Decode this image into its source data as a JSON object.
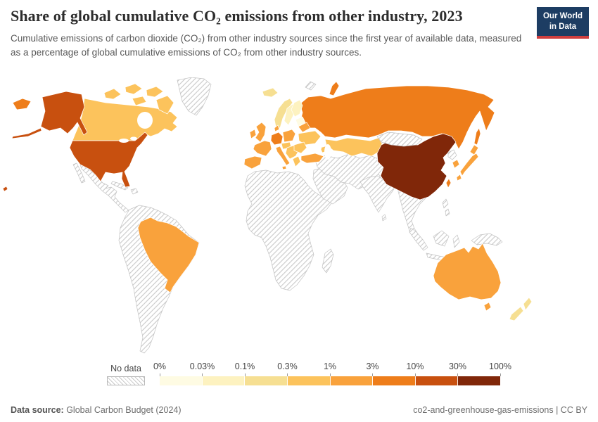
{
  "header": {
    "title": "Share of global cumulative CO₂ emissions from other industry, 2023",
    "subtitle": "Cumulative emissions of carbon dioxide (CO₂) from other industry sources since the first year of available data, measured as a percentage of global cumulative emissions of CO₂ from other industry sources.",
    "logo": {
      "line1": "Our World",
      "line2": "in Data",
      "bg_color": "#1d3d63",
      "accent_color": "#cf3e3e"
    }
  },
  "chart_data": {
    "type": "choropleth_map",
    "title": "Share of global cumulative CO₂ emissions from other industry, 2023",
    "unit": "% of global cumulative CO₂ emissions",
    "year": 2023,
    "projection": "world",
    "legend": {
      "no_data_label": "No data",
      "tick_labels": [
        "0%",
        "0.03%",
        "0.1%",
        "0.3%",
        "1%",
        "3%",
        "10%",
        "30%",
        "100%"
      ],
      "bin_ranges": [
        "0–0.03%",
        "0.03–0.1%",
        "0.1–0.3%",
        "0.3–1%",
        "1–3%",
        "3–10%",
        "10–30%",
        "30–100%"
      ],
      "bin_colors": [
        "#fefbe3",
        "#fdf2c0",
        "#f6df92",
        "#fcc35c",
        "#f9a23c",
        "#ee7d1a",
        "#c8500f",
        "#802709"
      ],
      "no_data_pattern": "diagonal-hatch"
    },
    "regions": {
      "united-states": 6,
      "hawaii": 6,
      "canada": 3,
      "greenland": -1,
      "mexico": -1,
      "baja-california": -1,
      "central-america": -1,
      "cuba": -1,
      "hispaniola": -1,
      "brazil": 4,
      "south-america-other": -1,
      "iceland": 2,
      "ireland": 4,
      "united-kingdom": 4,
      "norway": 2,
      "sweden": 1,
      "finland": 1,
      "baltic-states": 0,
      "denmark": 4,
      "germany": 5,
      "france": 4,
      "iberia": 4,
      "italy": 4,
      "poland": 4,
      "central-europe": 3,
      "balkans": 3,
      "greece": 3,
      "romania-bulgaria": 3,
      "ukraine": 3,
      "belarus": 4,
      "turkey": 4,
      "caucasus": 3,
      "russia": 5,
      "kazakhstan": 3,
      "middle-east": -1,
      "central-south-asia": -1,
      "india": -1,
      "sri-lanka": -1,
      "southeast-asia": -1,
      "mongolia": -1,
      "china": 7,
      "north-korea": -1,
      "south-korea": 4,
      "japan": 4,
      "taiwan": 5,
      "philippines": -1,
      "indonesia": -1,
      "new-guinea": -1,
      "africa": -1,
      "madagascar": -1,
      "svalbard": -1,
      "australia": 4,
      "new-zealand": 2
    }
  },
  "footer": {
    "source_label": "Data source:",
    "source_value": " Global Carbon Budget (2024)",
    "right_text": "co2-and-greenhouse-gas-emissions | CC BY"
  }
}
